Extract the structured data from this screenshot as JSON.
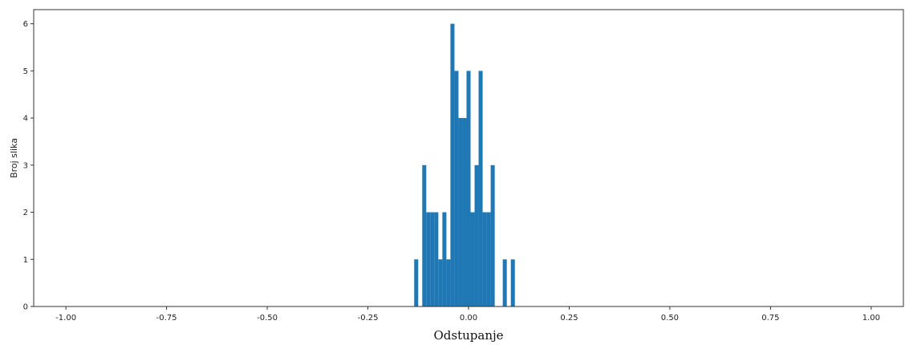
{
  "chart_data": {
    "type": "bar",
    "subtype": "histogram",
    "xlabel": "Odstupanje",
    "ylabel": "Broj slika",
    "xlim": [
      -1.08,
      1.08
    ],
    "ylim": [
      0,
      6.3
    ],
    "xticks": [
      "-1.00",
      "-0.75",
      "-0.50",
      "-0.25",
      "0.00",
      "0.25",
      "0.50",
      "0.75",
      "1.00"
    ],
    "yticks": [
      "0",
      "1",
      "2",
      "3",
      "4",
      "5",
      "6"
    ],
    "grid": false,
    "color": "#1f77b4",
    "bin_width": 0.01,
    "bins": [
      {
        "x": -0.13,
        "count": 1
      },
      {
        "x": -0.11,
        "count": 3
      },
      {
        "x": -0.1,
        "count": 2
      },
      {
        "x": -0.09,
        "count": 2
      },
      {
        "x": -0.08,
        "count": 2
      },
      {
        "x": -0.07,
        "count": 1
      },
      {
        "x": -0.06,
        "count": 2
      },
      {
        "x": -0.05,
        "count": 1
      },
      {
        "x": -0.04,
        "count": 6
      },
      {
        "x": -0.03,
        "count": 5
      },
      {
        "x": -0.02,
        "count": 4
      },
      {
        "x": -0.01,
        "count": 4
      },
      {
        "x": 0.0,
        "count": 5
      },
      {
        "x": 0.01,
        "count": 2
      },
      {
        "x": 0.02,
        "count": 3
      },
      {
        "x": 0.03,
        "count": 5
      },
      {
        "x": 0.04,
        "count": 2
      },
      {
        "x": 0.05,
        "count": 2
      },
      {
        "x": 0.06,
        "count": 3
      },
      {
        "x": 0.09,
        "count": 1
      },
      {
        "x": 0.11,
        "count": 1
      }
    ]
  }
}
